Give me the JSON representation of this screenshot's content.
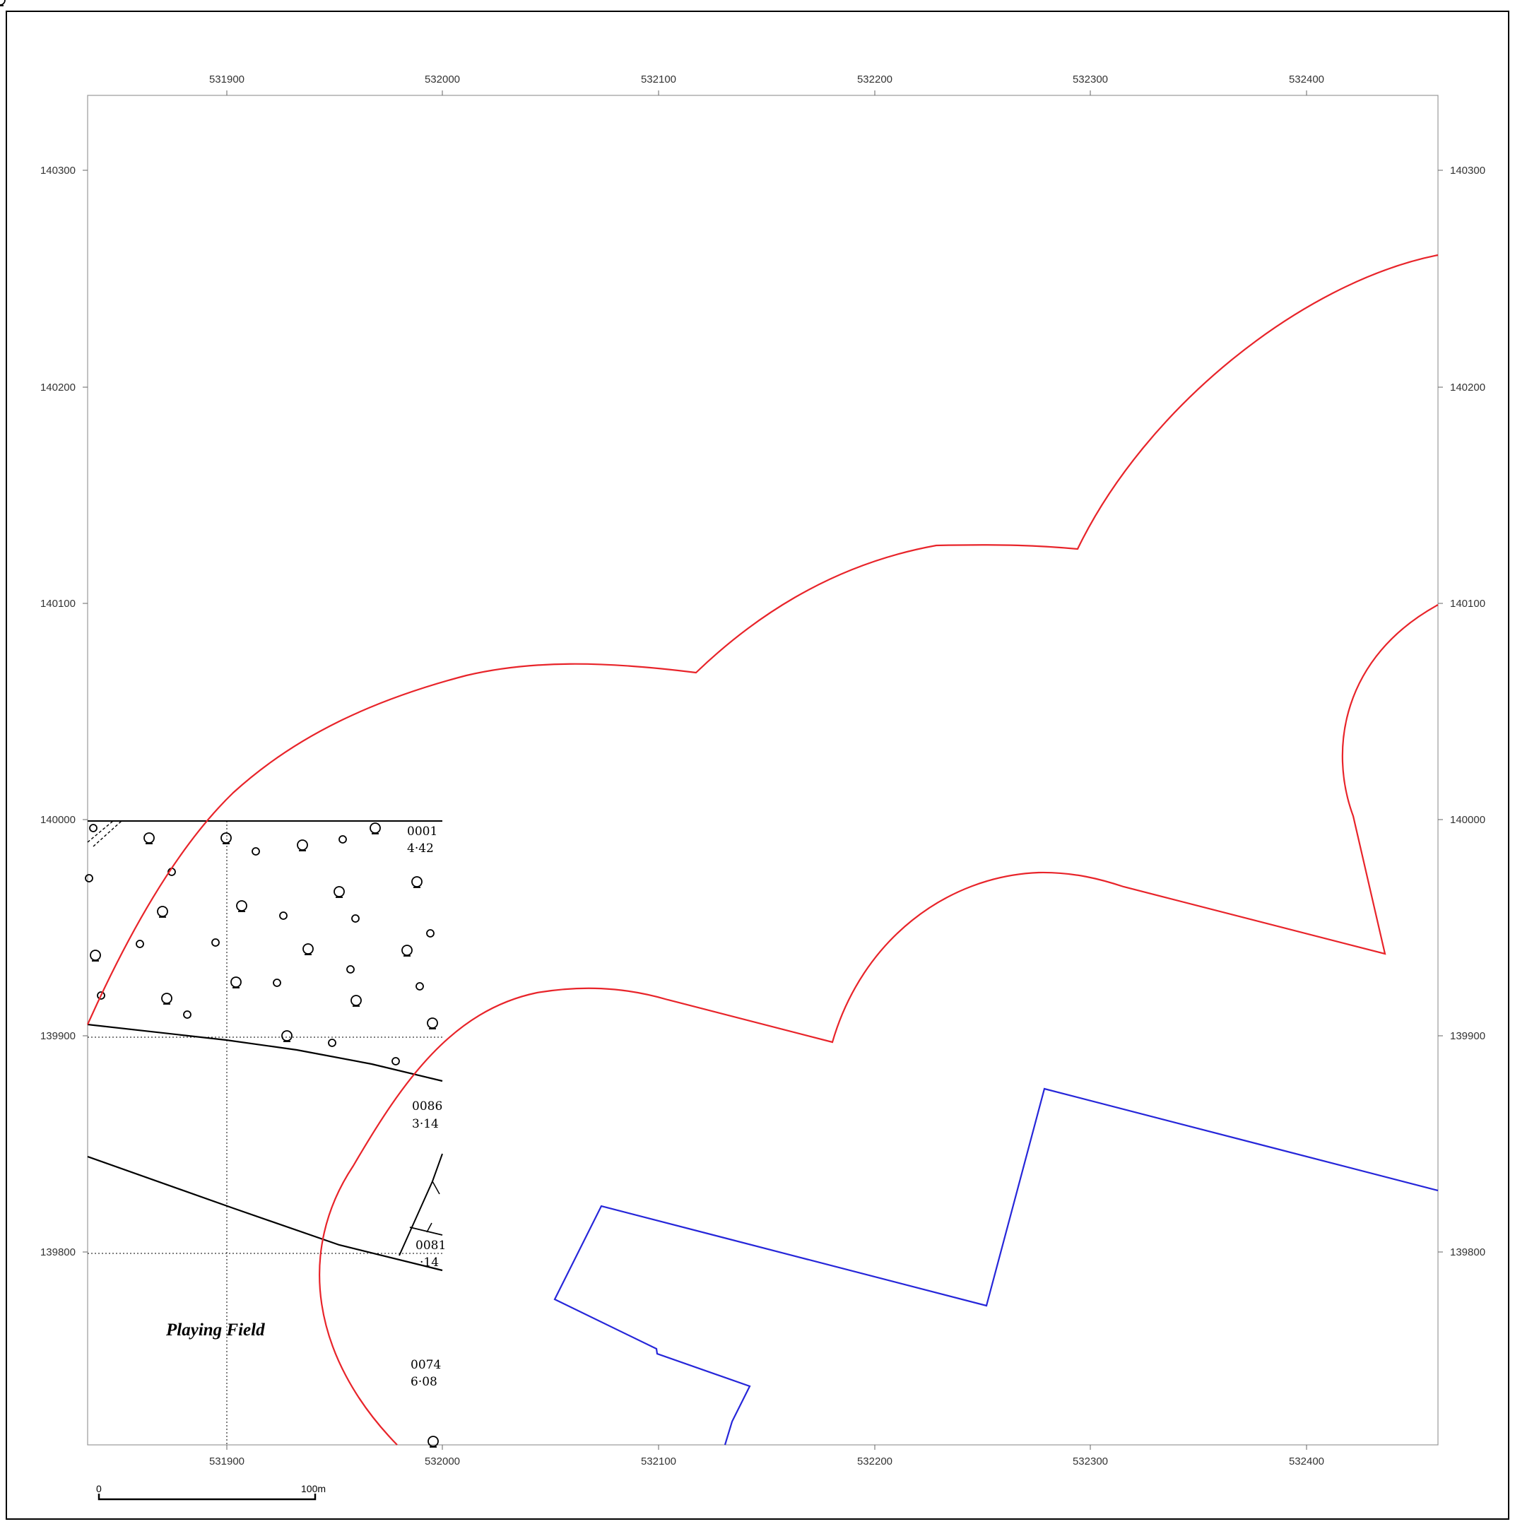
{
  "map": {
    "eastings": [
      "531900",
      "532000",
      "532100",
      "532200",
      "532300",
      "532400"
    ],
    "northings": [
      "140300",
      "140200",
      "140100",
      "140000",
      "139900",
      "139800"
    ],
    "parcels": [
      {
        "id": "0001",
        "area": "4·42"
      },
      {
        "id": "0086",
        "area": "3·14"
      },
      {
        "id": "0081",
        "area": "·14"
      },
      {
        "id": "0074",
        "area": "6·08"
      }
    ],
    "place_label": "Playing Field",
    "scale_bar": {
      "start": "0",
      "end": "100m"
    },
    "colors": {
      "red_boundary": "#e8242a",
      "blue_boundary": "#2626d9",
      "frame": "#000000"
    }
  }
}
